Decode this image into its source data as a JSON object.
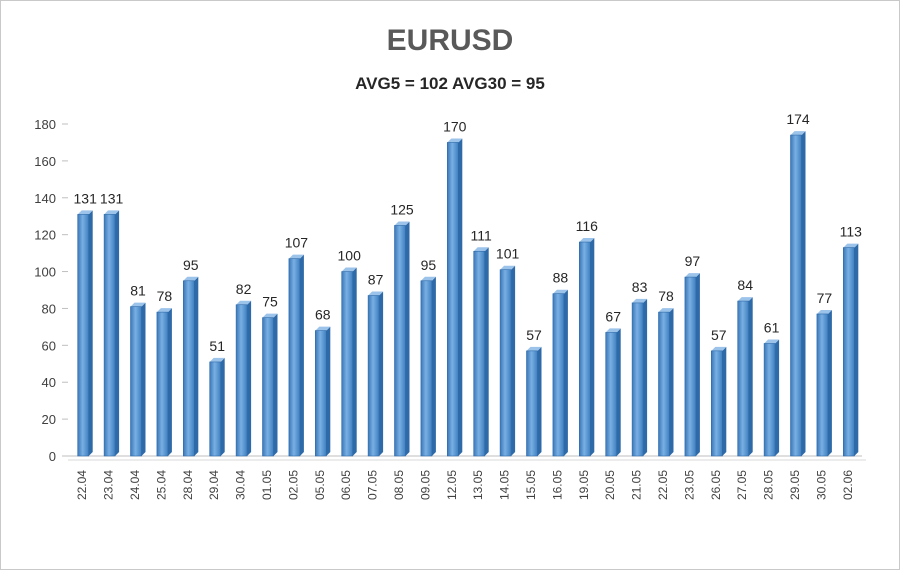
{
  "chart_data": {
    "type": "bar",
    "title": "EURUSD",
    "subtitle": "AVG5 = 102 AVG30 = 95",
    "xlabel": "",
    "ylabel": "",
    "ylim": [
      0,
      180
    ],
    "yticks": [
      0,
      20,
      40,
      60,
      80,
      100,
      120,
      140,
      160,
      180
    ],
    "grid": false,
    "bar_color": "#5b9bd5",
    "bar_dark_color": "#2f6aa8",
    "categories": [
      "22.04",
      "23.04",
      "24.04",
      "25.04",
      "28.04",
      "29.04",
      "30.04",
      "01.05",
      "02.05",
      "05.05",
      "06.05",
      "07.05",
      "08.05",
      "09.05",
      "12.05",
      "13.05",
      "14.05",
      "15.05",
      "16.05",
      "19.05",
      "20.05",
      "21.05",
      "22.05",
      "23.05",
      "26.05",
      "27.05",
      "28.05",
      "29.05",
      "30.05",
      "02.06"
    ],
    "values": [
      131,
      131,
      81,
      78,
      95,
      51,
      82,
      75,
      107,
      68,
      100,
      87,
      125,
      95,
      170,
      111,
      101,
      57,
      88,
      116,
      67,
      83,
      78,
      97,
      57,
      84,
      61,
      174,
      77,
      113
    ]
  }
}
